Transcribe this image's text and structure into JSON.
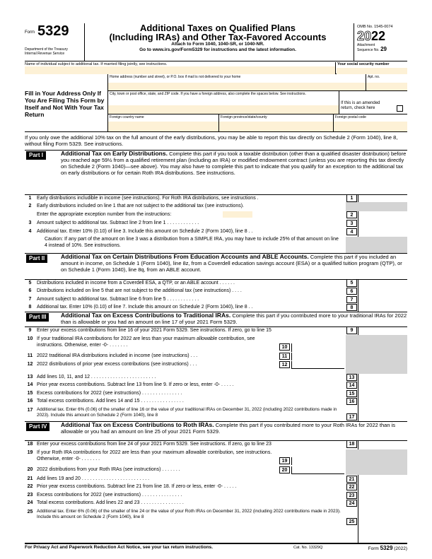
{
  "header": {
    "form_word": "Form",
    "form_number": "5329",
    "department": "Department of the Treasury",
    "irs": "Internal Revenue Service",
    "title_line1": "Additional Taxes on Qualified Plans",
    "title_line2": "(Including IRAs) and Other Tax-Favored Accounts",
    "attach": "Attach to Form 1040, 1040-SR, or 1040-NR.",
    "goto": "Go to www.irs.gov/Form5329 for instructions and the latest information.",
    "omb": "OMB No. 1545-0074",
    "year_outline": "20",
    "year_bold": "22",
    "attachment": "Attachment",
    "sequence_label": "Sequence No.",
    "sequence_no": "29"
  },
  "identity": {
    "name_label": "Name of individual subject to additional tax. If married filing jointly, see instructions.",
    "ssn_label": "Your social security number",
    "fill_in_text": "Fill in Your Address Only If You Are Filing This Form by Itself and Not With Your Tax Return",
    "home_address_label": "Home address (number and street), or P.O. box if mail is not delivered to your home",
    "apt_label": "Apt. no.",
    "city_label": "City, town or post office, state, and ZIP code. If you have a foreign address, also complete the spaces below. See instructions.",
    "amended_label": "If this is an amended return, check here",
    "foreign_country_label": "Foreign country name",
    "foreign_province_label": "Foreign province/state/county",
    "foreign_postal_label": "Foreign postal code"
  },
  "intro": "If you only owe the additional 10% tax on the full amount of the early distributions, you may be able to report this tax directly on Schedule 2 (Form 1040), line 8, without filing Form 5329. See instructions.",
  "parts": {
    "p1": {
      "badge": "Part I",
      "title": "Additional Tax on Early Distributions.",
      "desc": "Complete this part if you took a taxable distribution (other than a qualified disaster distribution) before you reached age 59½ from a qualified retirement plan (including an IRA) or modified endowment contract (unless you are reporting this tax directly on Schedule 2 (Form 1040)—see above). You may also have to complete this part to indicate that you qualify for an exception to the additional tax on early distributions or for certain Roth IRA distributions. See instructions."
    },
    "p2": {
      "badge": "Part II",
      "title": "Additional Tax on Certain Distributions From Education Accounts and ABLE Accounts.",
      "desc": "Complete this part if you included an amount in income, on Schedule 1 (Form 1040), line 8z, from a Coverdell education savings account (ESA) or a qualified tuition program (QTP), or on Schedule 1 (Form 1040), line 8q, from an ABLE account."
    },
    "p3": {
      "badge": "Part III",
      "title": "Additional Tax on Excess Contributions to Traditional IRAs.",
      "desc": "Complete this part if you contributed more to your traditional IRAs for 2022 than is allowable or you had an amount on line 17 of your 2021 Form 5329."
    },
    "p4": {
      "badge": "Part IV",
      "title": "Additional Tax on Excess Contributions to Roth IRAs.",
      "desc": "Complete this part if you contributed more to your Roth IRAs for 2022 than is allowable or you had an amount on line 25 of your 2021 Form 5329."
    }
  },
  "lines": {
    "l1": {
      "num": "1",
      "text": "Early distributions includible in income (see instructions). For Roth IRA distributions, see instructions ."
    },
    "l2": {
      "num": "2",
      "text": "Early distributions included on line 1 that are not subject to the additional tax (see instructions).",
      "text2": "Enter the appropriate exception number from the instructions:"
    },
    "l3": {
      "num": "3",
      "text": "Amount subject to additional tax. Subtract line 2 from line 1 . . . . . . . . . . . ."
    },
    "l4": {
      "num": "4",
      "text": "Additional tax. Enter 10% (0.10) of line 3. Include this amount on Schedule 2 (Form 1040), line 8 . .",
      "caution": "Caution: If any part of the amount on line 3 was a distribution from a SIMPLE IRA, you may have to include 25% of that amount on line 4 instead of 10%. See instructions."
    },
    "l5": {
      "num": "5",
      "text": "Distributions included in income from a Coverdell ESA, a QTP, or an ABLE account . . . . . ."
    },
    "l6": {
      "num": "6",
      "text": "Distributions included on line 5 that are not subject to the additional tax (see instructions) . . . ."
    },
    "l7": {
      "num": "7",
      "text": "Amount subject to additional tax. Subtract line 6 from line 5 . . . . . . . . . . . ."
    },
    "l8": {
      "num": "8",
      "text": "Additional tax. Enter 10% (0.10) of line 7. Include this amount on Schedule 2 (Form 1040), line 8 . ."
    },
    "l9": {
      "num": "9",
      "text": "Enter your excess contributions from line 16 of your 2021 Form 5329. See instructions. If zero, go to line 15"
    },
    "l10": {
      "num": "10",
      "text": "If your traditional IRA contributions for 2022 are less than your maximum allowable contribution, see instructions. Otherwise, enter -0- . . . . . . ."
    },
    "l11": {
      "num": "11",
      "text": "2022 traditional IRA distributions included in income (see instructions) . . ."
    },
    "l12": {
      "num": "12",
      "text": "2022 distributions of prior year excess contributions (see instructions) . . ."
    },
    "l13": {
      "num": "13",
      "text": "Add lines 10, 11, and 12 . . . . . . . . . . . . . . . . . . . . . . . ."
    },
    "l14": {
      "num": "14",
      "text": "Prior year excess contributions. Subtract line 13 from line 9. If zero or less, enter -0- . . . . ."
    },
    "l15": {
      "num": "15",
      "text": "Excess contributions for 2022 (see instructions) . . . . . . . . . . . . . . ."
    },
    "l16": {
      "num": "16",
      "text": "Total excess contributions. Add lines 14 and 15 . . . . . . . . . . . . . . . ."
    },
    "l17": {
      "num": "17",
      "text": "Additional tax. Enter 6% (0.06) of the smaller of line 16 or the value of your traditional IRAs on December 31, 2022 (including 2022 contributions made in 2023). Include this amount on Schedule 2 (Form 1040), line 8"
    },
    "l18": {
      "num": "18",
      "text": "Enter your excess contributions from line 24 of your 2021 Form 5329. See instructions. If zero, go to line 23"
    },
    "l19": {
      "num": "19",
      "text": "If your Roth IRA contributions for 2022 are less than your maximum allowable contribution, see instructions. Otherwise, enter -0- . . . . . . ."
    },
    "l20": {
      "num": "20",
      "text": "2022 distributions from your Roth IRAs (see instructions) . . . . . . ."
    },
    "l21": {
      "num": "21",
      "text": "Add lines 19 and 20 . . . . . . . . . . . . . . . . . . . . . . . . ."
    },
    "l22": {
      "num": "22",
      "text": "Prior year excess contributions. Subtract line 21 from line 18. If zero or less, enter -0- . . . . ."
    },
    "l23": {
      "num": "23",
      "text": "Excess contributions for 2022 (see instructions) . . . . . . . . . . . . . . ."
    },
    "l24": {
      "num": "24",
      "text": "Total excess contributions. Add lines 22 and 23 . . . . . . . . . . . . . . . ."
    },
    "l25": {
      "num": "25",
      "text": "Additional tax. Enter 6% (0.06) of the smaller of line 24 or the value of your Roth IRAs on December 31, 2022 (including 2022 contributions made in 2023). Include this amount on Schedule 2 (Form 1040), line 8"
    }
  },
  "footer": {
    "privacy": "For Privacy Act and Paperwork Reduction Act Notice, see your tax return instructions.",
    "cat": "Cat. No. 13329Q",
    "form_label": "Form",
    "form_num": "5329",
    "year": "(2022)"
  }
}
